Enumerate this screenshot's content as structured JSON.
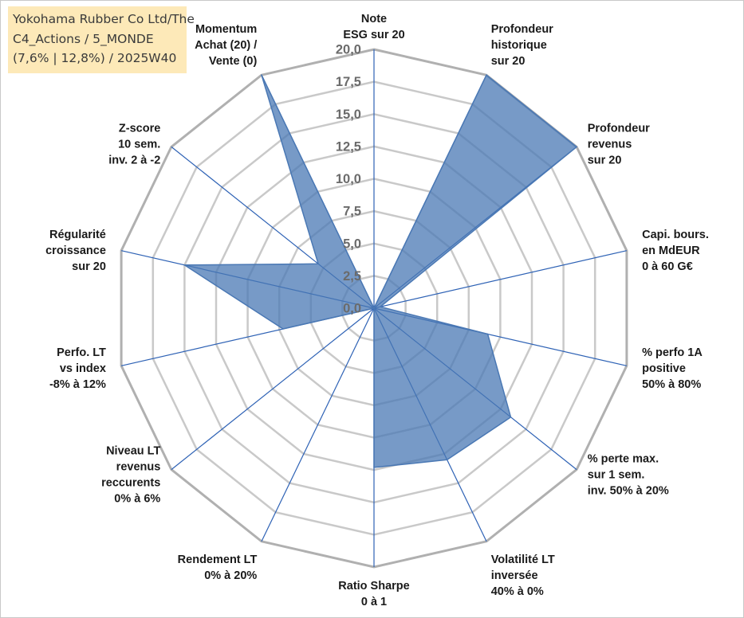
{
  "title_box": {
    "line1": "Yokohama Rubber Co Ltd/The",
    "line2": "C4_Actions / 5_MONDE",
    "line3": "(7,6% | 12,8%) / 2025W40"
  },
  "colors": {
    "fill": "#4a78b4",
    "spoke": "#2e62b5",
    "grid_outer": "#b0b0b0",
    "grid_inner": "#c9c9c9",
    "tick": "#6b6b6b",
    "title_bg": "#fde9b8"
  },
  "chart_data": {
    "type": "radar",
    "range": [
      0,
      20
    ],
    "ticks": [
      "0,0",
      "2,5",
      "5,0",
      "7,5",
      "10,0",
      "12,5",
      "15,0",
      "17,5",
      "20,0"
    ],
    "axes": [
      {
        "label": [
          "Note",
          "ESG sur 20"
        ],
        "value": 0
      },
      {
        "label": [
          "Profondeur",
          "historique",
          "sur 20"
        ],
        "value": 20
      },
      {
        "label": [
          "Profondeur",
          "revenus",
          "sur 20"
        ],
        "value": 20
      },
      {
        "label": [
          "Capi. bours.",
          "en MdEUR",
          "0 à 60 G€"
        ],
        "value": 0.5
      },
      {
        "label": [
          "% perfo 1A",
          "positive",
          "50% à 80%"
        ],
        "value": 9
      },
      {
        "label": [
          "% perte max.",
          "sur 1 sem.",
          "inv. 50% à 20%"
        ],
        "value": 13.5
      },
      {
        "label": [
          "Volatilité LT",
          "inversée",
          "40% à 0%"
        ],
        "value": 13
      },
      {
        "label": [
          "Ratio Sharpe",
          "0 à 1"
        ],
        "value": 12.3
      },
      {
        "label": [
          "Rendement LT",
          "0% à 20%"
        ],
        "value": 0
      },
      {
        "label": [
          "Niveau LT",
          "revenus",
          "reccurents",
          "0% à 6%"
        ],
        "value": 0
      },
      {
        "label": [
          "Perfo. LT",
          "vs index",
          "-8% à 12%"
        ],
        "value": 7.2
      },
      {
        "label": [
          "Régularité",
          "croissance",
          "sur 20"
        ],
        "value": 15
      },
      {
        "label": [
          "Z-score",
          "10 sem.",
          "inv. 2 à -2"
        ],
        "value": 5.5
      },
      {
        "label": [
          "Momentum",
          "Achat (20) /",
          "Vente (0)"
        ],
        "value": 20
      }
    ]
  }
}
